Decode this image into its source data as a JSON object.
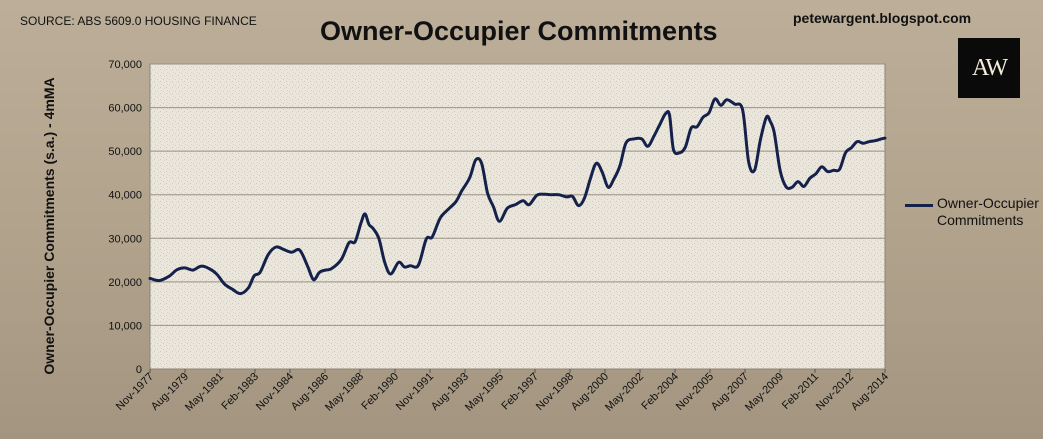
{
  "source_text": "SOURCE: ABS 5609.0 HOUSING FINANCE",
  "blog_text": "petewargent.blogspot.com",
  "logo_text": "AW",
  "colors": {
    "line": "#14214a",
    "plot_bg": "#ebe6dc",
    "frame": "#b0a28b"
  },
  "chart_data": {
    "type": "line",
    "title": "Owner-Occupier Commitments",
    "ylabel": "Owner-Occupier Commitments (s.a.) - 4mMA",
    "xlabel": "",
    "ylim": [
      0,
      70000
    ],
    "yticks": [
      0,
      10000,
      20000,
      30000,
      40000,
      50000,
      60000,
      70000
    ],
    "ytick_labels": [
      "0",
      "10,000",
      "20,000",
      "30,000",
      "40,000",
      "50,000",
      "60,000",
      "70,000"
    ],
    "grid": true,
    "legend": "right",
    "categories": [
      "Nov-1977",
      "Aug-1979",
      "May-1981",
      "Feb-1983",
      "Nov-1984",
      "Aug-1986",
      "May-1988",
      "Feb-1990",
      "Nov-1991",
      "Aug-1993",
      "May-1995",
      "Feb-1997",
      "Nov-1998",
      "Aug-2000",
      "May-2002",
      "Feb-2004",
      "Nov-2005",
      "Aug-2007",
      "May-2009",
      "Feb-2011",
      "Nov-2012",
      "Aug-2014"
    ],
    "series": [
      {
        "name": "Owner-Occupier Commitments",
        "x": [
          1977.83,
          1978.3,
          1978.8,
          1979.2,
          1979.6,
          1980.0,
          1980.4,
          1980.8,
          1981.2,
          1981.6,
          1982.0,
          1982.4,
          1982.8,
          1983.1,
          1983.4,
          1983.8,
          1984.2,
          1984.6,
          1985.0,
          1985.4,
          1985.8,
          1986.1,
          1986.4,
          1986.7,
          1987.0,
          1987.5,
          1987.9,
          1988.2,
          1988.5,
          1988.7,
          1988.9,
          1989.1,
          1989.4,
          1989.7,
          1990.0,
          1990.4,
          1990.7,
          1991.0,
          1991.4,
          1991.8,
          1992.1,
          1992.5,
          1992.9,
          1993.3,
          1993.6,
          1994.0,
          1994.3,
          1994.6,
          1994.9,
          1995.2,
          1995.5,
          1995.9,
          1996.3,
          1996.7,
          1997.0,
          1997.4,
          1997.8,
          1998.1,
          1998.5,
          1998.9,
          1999.2,
          1999.5,
          1999.8,
          2000.1,
          2000.4,
          2000.7,
          2001.0,
          2001.3,
          2001.6,
          2001.9,
          2002.3,
          2002.7,
          2003.0,
          2003.3,
          2003.6,
          2003.9,
          2004.1,
          2004.3,
          2004.6,
          2004.9,
          2005.2,
          2005.5,
          2005.8,
          2006.1,
          2006.4,
          2006.7,
          2007.0,
          2007.4,
          2007.8,
          2008.1,
          2008.4,
          2008.7,
          2009.0,
          2009.2,
          2009.4,
          2009.7,
          2010.0,
          2010.3,
          2010.6,
          2010.9,
          2011.2,
          2011.5,
          2011.8,
          2012.1,
          2012.4,
          2012.7,
          2013.0,
          2013.3,
          2013.6,
          2013.9,
          2014.2,
          2014.5,
          2014.8,
          2015.0
        ],
        "values": [
          20800,
          20300,
          21300,
          22800,
          23200,
          22700,
          23600,
          23100,
          21800,
          19500,
          18300,
          17300,
          18600,
          21400,
          22200,
          26200,
          28000,
          27400,
          26800,
          27300,
          23600,
          20500,
          22200,
          22700,
          23000,
          25100,
          29000,
          29200,
          33500,
          35600,
          33200,
          32300,
          30000,
          24500,
          21800,
          24500,
          23400,
          23700,
          23800,
          29800,
          30300,
          34600,
          36600,
          38400,
          40900,
          43900,
          48000,
          47200,
          40400,
          37200,
          33900,
          36900,
          37700,
          38600,
          37700,
          39900,
          40100,
          40000,
          40000,
          39500,
          39600,
          37500,
          39200,
          43700,
          47200,
          45200,
          41700,
          43700,
          46700,
          51900,
          52800,
          52800,
          51100,
          53300,
          56000,
          58600,
          58300,
          50400,
          49600,
          50900,
          55300,
          55600,
          57800,
          58800,
          62000,
          60500,
          61800,
          60800,
          59500,
          47600,
          45600,
          52600,
          57800,
          56800,
          54200,
          45500,
          41800,
          41700,
          43000,
          41900,
          43800,
          44800,
          46400,
          45300,
          45600,
          45800,
          49600,
          50800,
          52200,
          51800,
          52200,
          52400,
          52800,
          53000
        ]
      }
    ]
  },
  "legend_label": "Owner-Occupier Commitments"
}
